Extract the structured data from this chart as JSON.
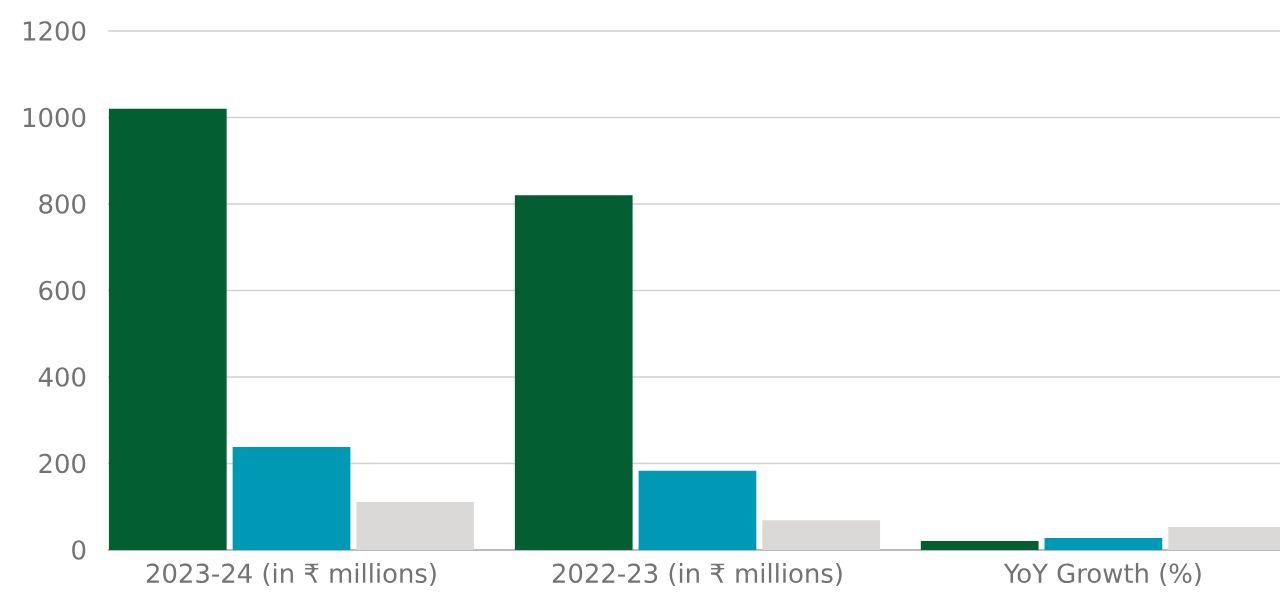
{
  "chart_data": {
    "type": "bar",
    "categories": [
      "2023-24 (in ₹ millions)",
      "2022-23 (in ₹ millions)",
      "YoY Growth (%)"
    ],
    "series": [
      {
        "color": "#035e32",
        "values": [
          1020,
          820,
          21
        ]
      },
      {
        "color": "#0099b5",
        "values": [
          238,
          183,
          28
        ]
      },
      {
        "color": "#dad9d7",
        "values": [
          111,
          69,
          53
        ]
      }
    ],
    "ylim": [
      0,
      1200
    ],
    "yticks": [
      0,
      200,
      400,
      600,
      800,
      1000,
      1200
    ],
    "grid": "y"
  }
}
